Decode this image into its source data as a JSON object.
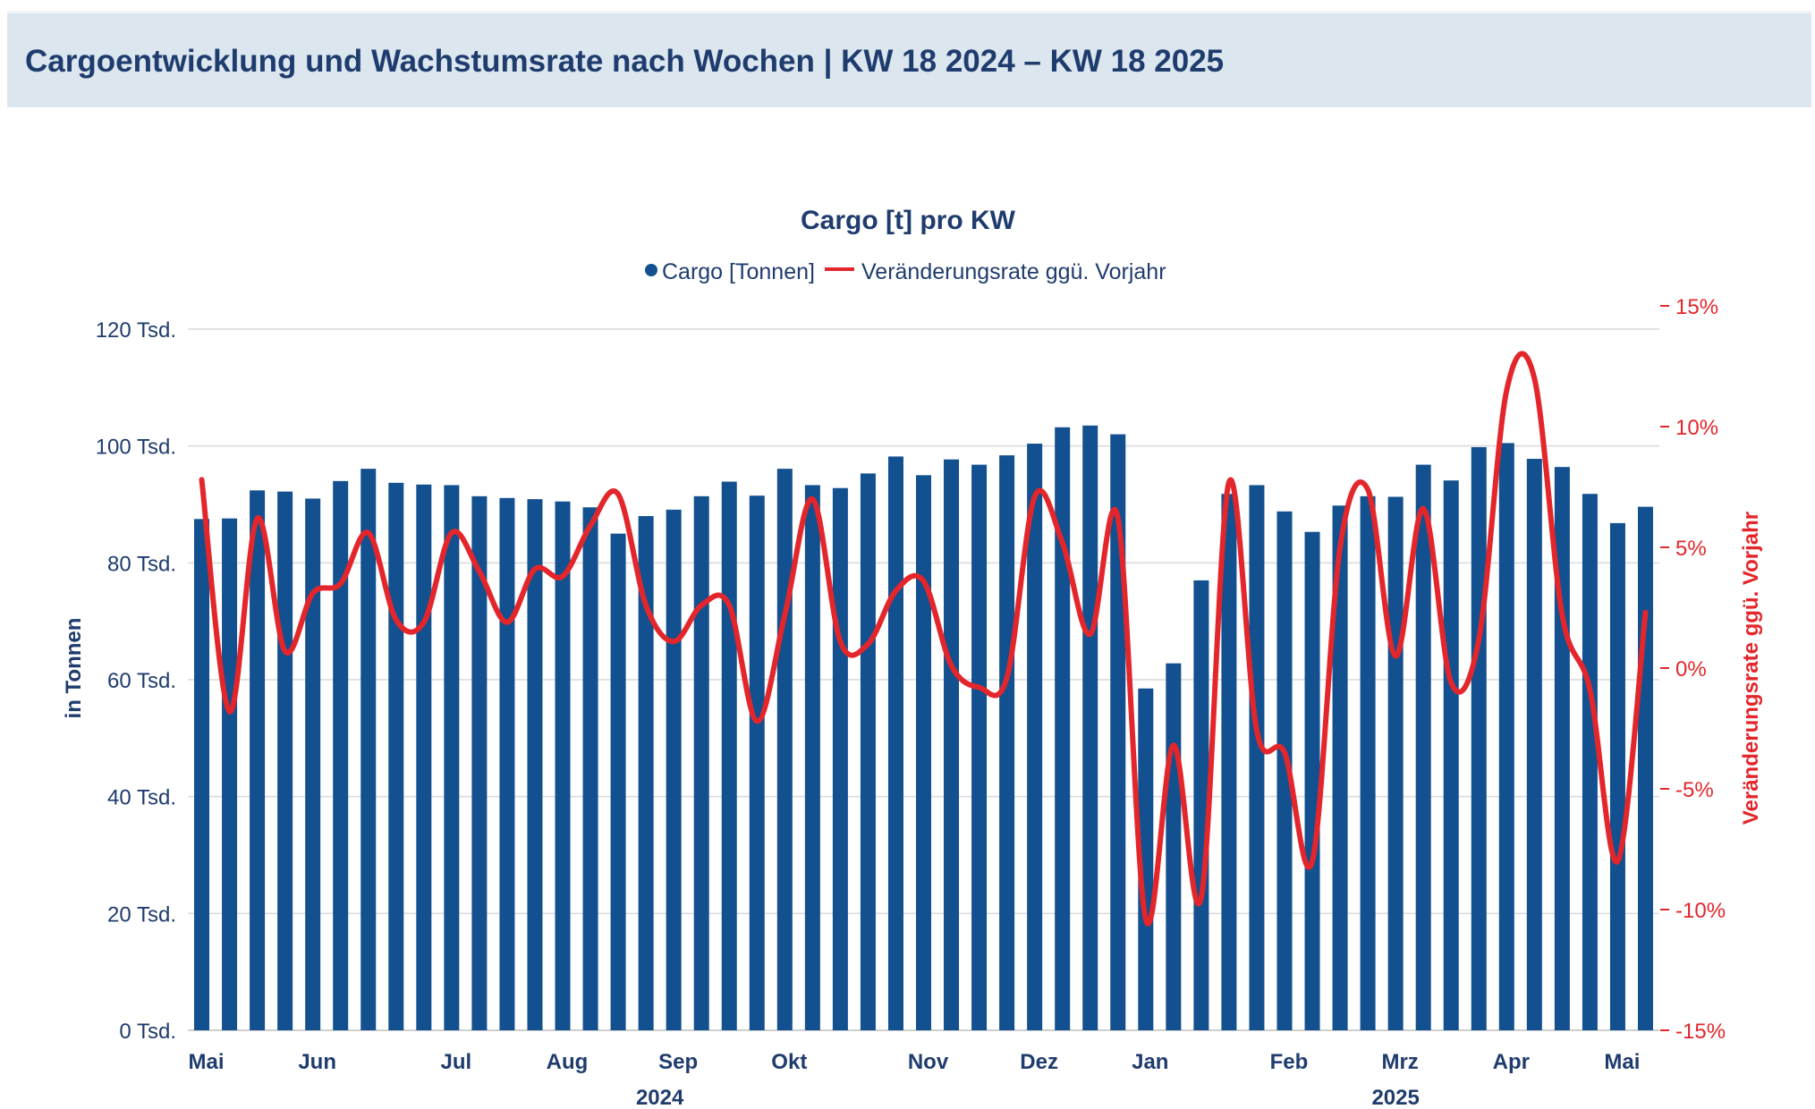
{
  "header": {
    "title": "Cargoentwicklung und Wachstumsrate nach Wochen | KW 18 2024 – KW 18 2025"
  },
  "colors": {
    "bar": "#12508f",
    "line": "#e3262b",
    "title": "#1f3c6e",
    "axis_left": "#1f3c6e",
    "axis_right": "#e3262b",
    "grid": "#d9d9d9",
    "header_bg": "#dce6ef"
  },
  "chart_data": {
    "type": "bar",
    "title": "Cargo [t] pro KW",
    "legend": {
      "position": "top",
      "bar_label": "Cargo [Tonnen]",
      "line_label": "Veränderungsrate ggü. Vorjahr"
    },
    "ylabel": "in Tonnen",
    "y2label": "Veränderungsrate ggü. Vorjahr",
    "ylim": [
      0,
      120000
    ],
    "y2lim": [
      -15,
      15
    ],
    "yticks": [
      "0 Tsd.",
      "20 Tsd.",
      "40 Tsd.",
      "60 Tsd.",
      "80 Tsd.",
      "100 Tsd.",
      "120 Tsd."
    ],
    "y2ticks": [
      "-15%",
      "-10%",
      "-5%",
      "0%",
      "5%",
      "10%",
      "15%"
    ],
    "months": [
      {
        "label": "Mai",
        "start": 0
      },
      {
        "label": "Jun",
        "start": 4
      },
      {
        "label": "Jul",
        "start": 9
      },
      {
        "label": "Aug",
        "start": 13
      },
      {
        "label": "Sep",
        "start": 17
      },
      {
        "label": "Okt",
        "start": 21
      },
      {
        "label": "Nov",
        "start": 26
      },
      {
        "label": "Dez",
        "start": 30
      },
      {
        "label": "Jan",
        "start": 34
      },
      {
        "label": "Feb",
        "start": 39
      },
      {
        "label": "Mrz",
        "start": 43
      },
      {
        "label": "Apr",
        "start": 47
      },
      {
        "label": "Mai",
        "start": 51
      }
    ],
    "years": [
      {
        "label": "2024",
        "from": 0,
        "to": 34
      },
      {
        "label": "2025",
        "from": 34,
        "to": 53
      }
    ],
    "series": [
      {
        "name": "Cargo [Tonnen]",
        "kind": "bar",
        "values": [
          87500,
          87600,
          92400,
          92200,
          91000,
          94000,
          96100,
          93700,
          93400,
          93300,
          91400,
          91100,
          90900,
          90500,
          89500,
          85000,
          88000,
          89100,
          91400,
          93900,
          91500,
          96100,
          93300,
          92800,
          95300,
          98200,
          95000,
          97700,
          96800,
          98400,
          100400,
          103200,
          103500,
          102000,
          58500,
          62800,
          77000,
          91800,
          93300,
          88800,
          85300,
          89800,
          91400,
          91300,
          96800,
          94100,
          99800,
          100500,
          97800,
          96400,
          91800,
          86800,
          89600
        ]
      },
      {
        "name": "Veränderungsrate ggü. Vorjahr",
        "kind": "line",
        "values": [
          7.8,
          -1.8,
          6.2,
          0.7,
          3.1,
          3.5,
          5.6,
          2.0,
          1.9,
          5.6,
          4.0,
          1.9,
          4.1,
          3.8,
          5.9,
          7.2,
          2.6,
          1.1,
          2.6,
          2.6,
          -2.2,
          2.2,
          7.0,
          1.1,
          1.0,
          3.2,
          3.6,
          0.1,
          -0.8,
          -0.4,
          7.1,
          5.2,
          1.4,
          6.2,
          -10.4,
          -3.2,
          -9.5,
          7.7,
          -2.6,
          -3.5,
          -8.0,
          5.0,
          7.4,
          0.5,
          6.6,
          -0.6,
          1.2,
          11.5,
          12.0,
          2.2,
          -0.9,
          -8.0,
          2.3
        ]
      }
    ]
  }
}
